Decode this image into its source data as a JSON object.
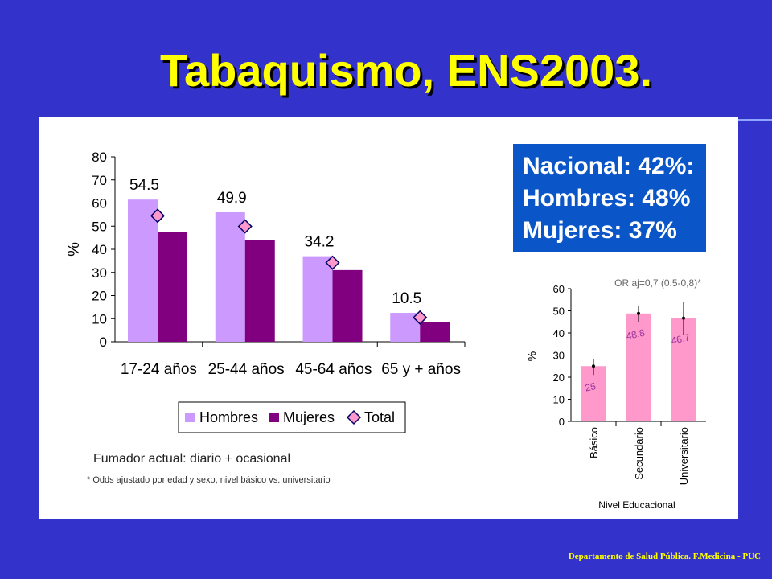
{
  "slide": {
    "title": "Tabaquismo, ENS2003.",
    "callout": [
      "Nacional: 42%:",
      "Hombres: 48%",
      "Mujeres: 37%"
    ],
    "note_current_smoker": "Fumador actual: diario + ocasional",
    "note_odds": "* Odds ajustado por edad y sexo,  nivel básico vs. universitario",
    "footer": "Departamento de Salud Pública. F.Medicina - PUC"
  },
  "colors": {
    "background": "#3333cc",
    "title": "#ffff00",
    "hombres": "#cc99ff",
    "mujeres": "#800080",
    "total_marker": "#ff99cc",
    "edu_bar": "#ff99cc",
    "callout_bg": "#0a56c8"
  },
  "chart_data": [
    {
      "type": "bar",
      "categories": [
        "17-24 años",
        "25-44 años",
        "45-64 años",
        "65 y + años"
      ],
      "series": [
        {
          "name": "Hombres",
          "values": [
            61.5,
            56,
            37,
            12.5
          ]
        },
        {
          "name": "Mujeres",
          "values": [
            47.5,
            44,
            31,
            8.5
          ]
        },
        {
          "name": "Total",
          "values": [
            54.5,
            49.9,
            34.2,
            10.5
          ],
          "style": "diamond-marker"
        }
      ],
      "data_labels": [
        "54.5",
        "49.9",
        "34.2",
        "10.5"
      ],
      "ylabel": "%",
      "ylim": [
        0,
        80
      ],
      "yticks": [
        0,
        10,
        20,
        30,
        40,
        50,
        60,
        70,
        80
      ],
      "legend": "bottom"
    },
    {
      "type": "bar",
      "annotation": "OR aj=0,7 (0.5-0,8)*",
      "categories": [
        "Básico",
        "Secundario",
        "Universitario"
      ],
      "values": [
        25,
        48.8,
        46.7
      ],
      "data_labels": [
        "25",
        "48,8",
        "46,7"
      ],
      "error_low": [
        21,
        45,
        39
      ],
      "error_high": [
        28,
        52,
        54
      ],
      "ylabel": "%",
      "xlabel": "Nivel Educacional",
      "ylim": [
        0,
        60
      ],
      "yticks": [
        0,
        10,
        20,
        30,
        40,
        50,
        60
      ]
    }
  ]
}
